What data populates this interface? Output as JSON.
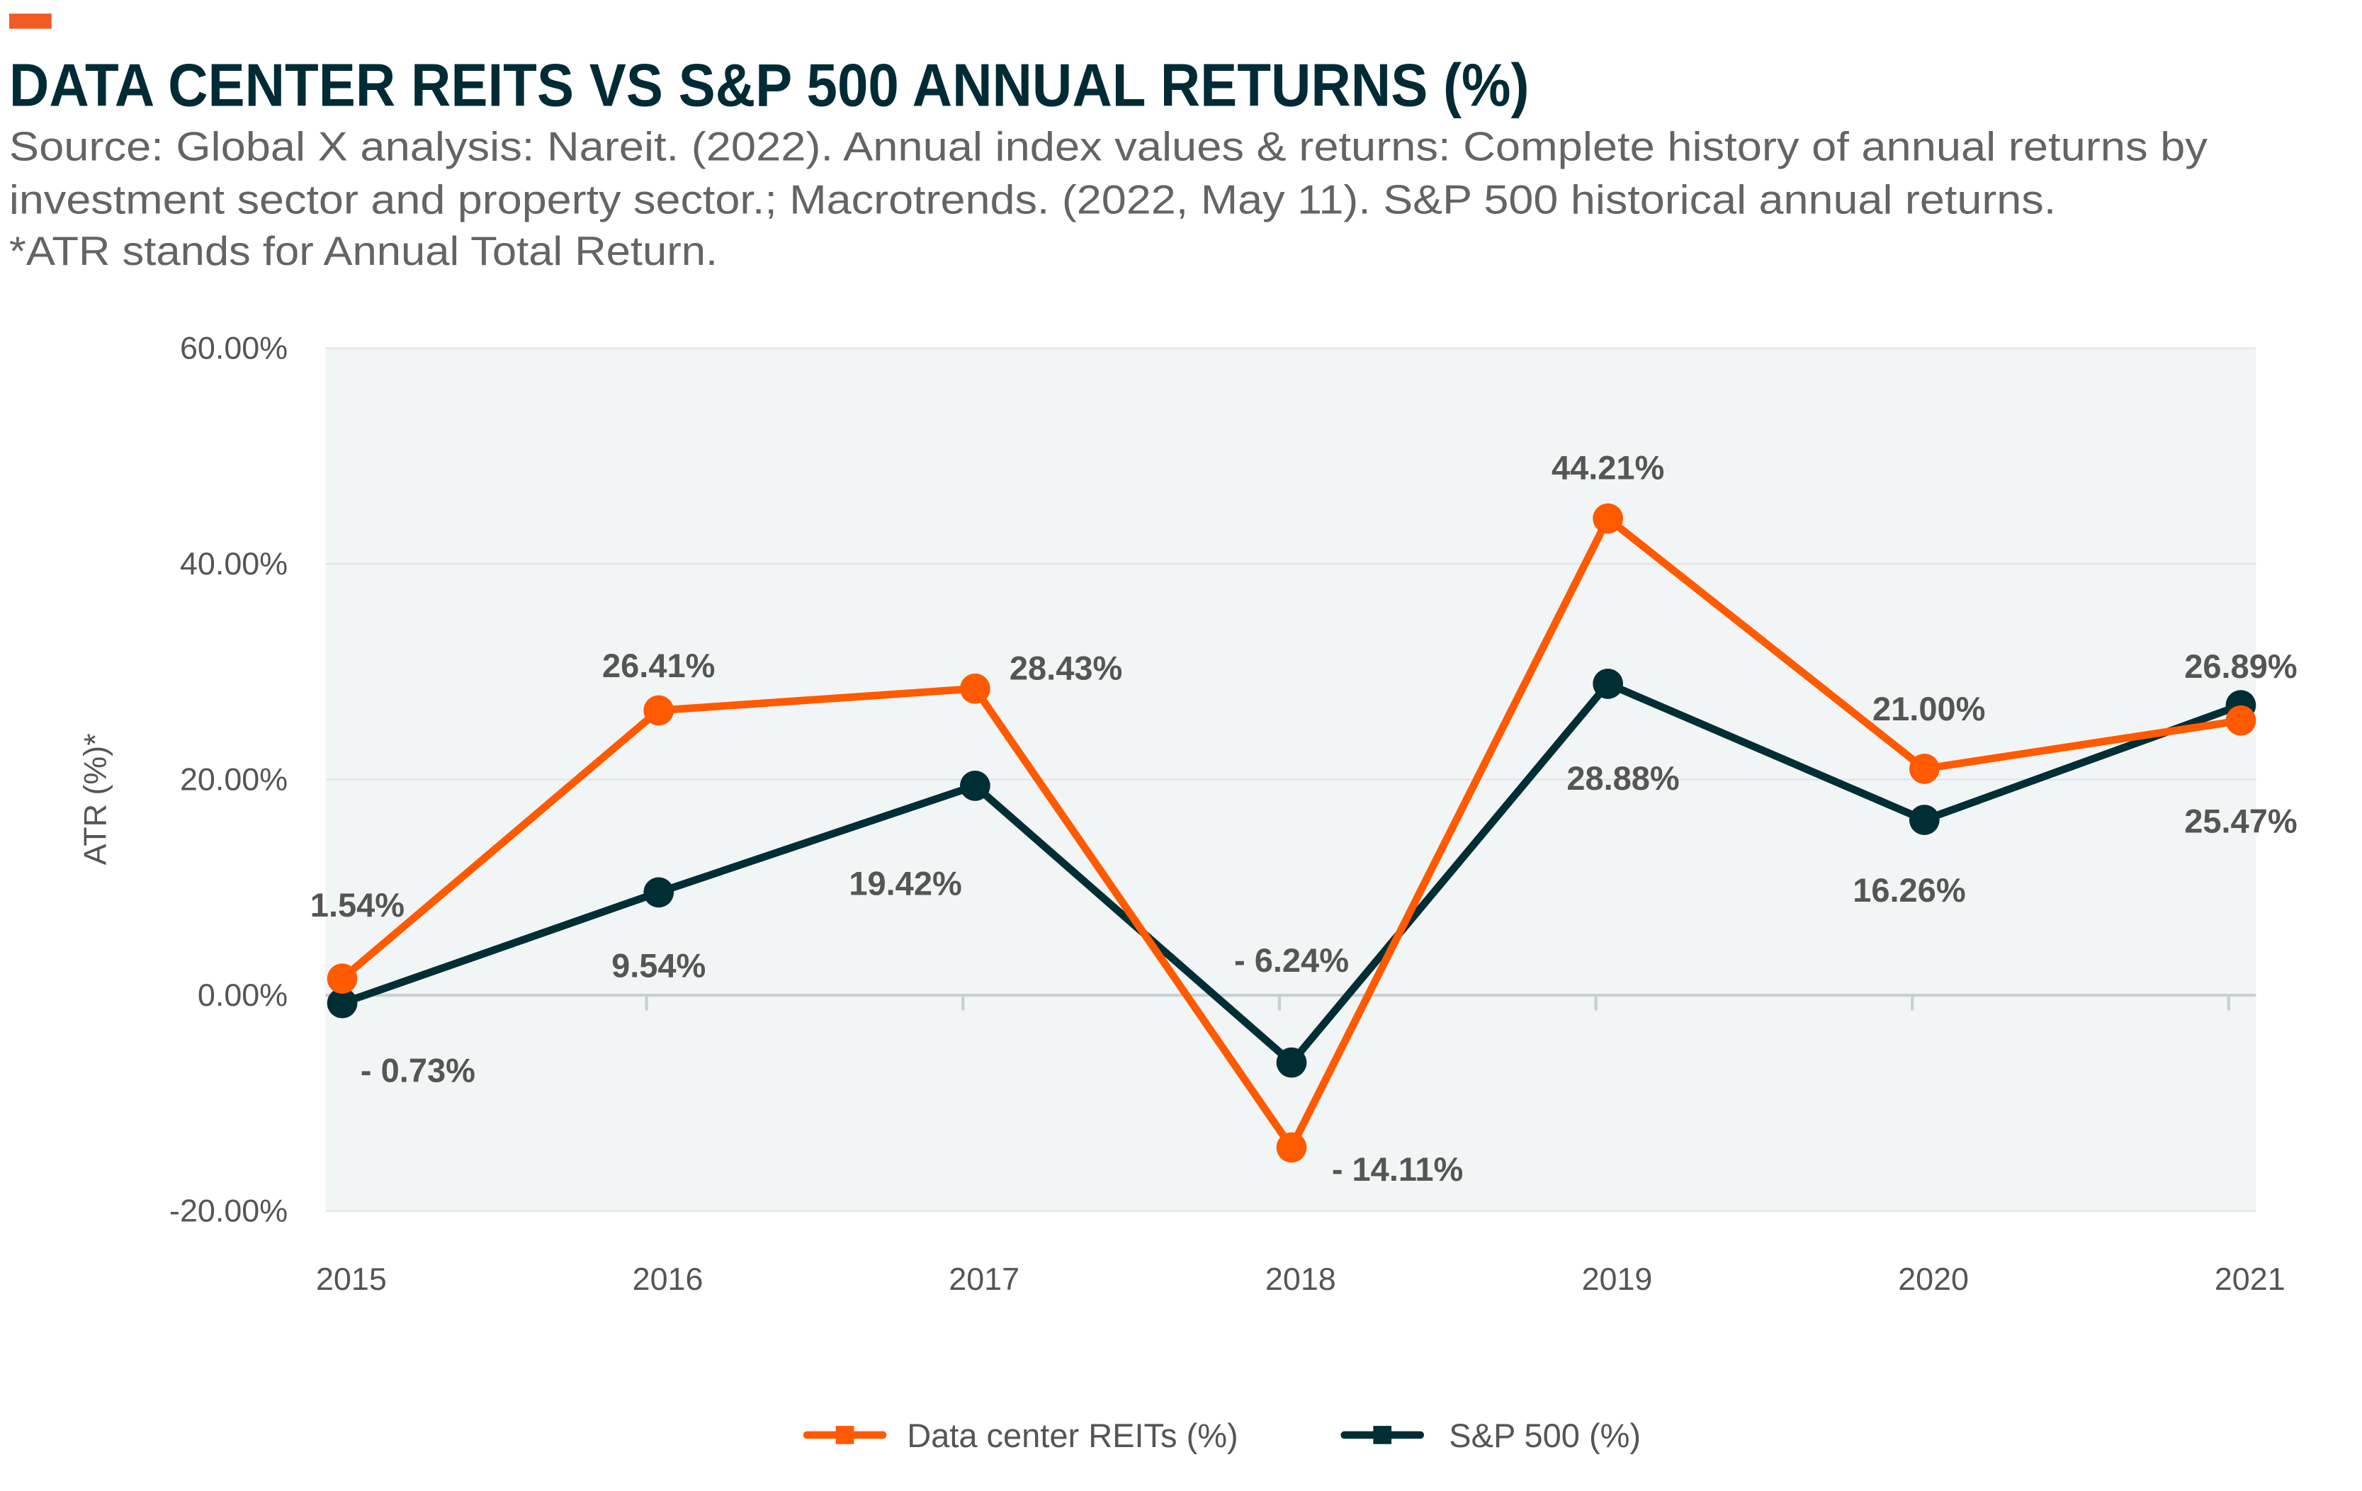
{
  "header": {
    "title": "DATA CENTER REITS VS S&P 500 ANNUAL RETURNS (%)",
    "source_lines": [
      "Source:  Global X analysis: Nareit. (2022). Annual index values & returns: Complete history of annual returns by",
      "investment sector and property sector.; Macrotrends. (2022, May 11). S&P 500 historical annual returns.",
      "*ATR stands for Annual Total Return."
    ],
    "accent_color": "#f15a24"
  },
  "chart_data": {
    "type": "line",
    "title": "DATA CENTER REITS VS S&P 500 ANNUAL RETURNS (%)",
    "xlabel": "",
    "ylabel": "ATR (%)*",
    "x": [
      "2015",
      "2016",
      "2017",
      "2018",
      "2019",
      "2020",
      "2021"
    ],
    "ylim": [
      -20,
      60
    ],
    "yticks": [
      -20,
      0,
      20,
      40,
      60
    ],
    "ytick_labels": [
      "-20.00%",
      "0.00%",
      "20.00%",
      "40.00%",
      "60.00%"
    ],
    "grid": true,
    "legend_position": "bottom",
    "series": [
      {
        "name": "Data center REITs (%)",
        "color": "#ff5a00",
        "values": [
          1.54,
          26.41,
          28.43,
          -14.11,
          44.21,
          21.0,
          25.47
        ],
        "labels": [
          "1.54%",
          "26.41%",
          "28.43%",
          "- 14.11%",
          "44.21%",
          "21.00%",
          "25.47%"
        ]
      },
      {
        "name": "S&P 500 (%)",
        "color": "#002e35",
        "values": [
          -0.73,
          9.54,
          19.42,
          -6.24,
          28.88,
          16.26,
          26.89
        ],
        "labels": [
          "- 0.73%",
          "9.54%",
          "19.42%",
          "- 6.24%",
          "28.88%",
          "16.26%",
          "26.89%"
        ]
      }
    ]
  }
}
